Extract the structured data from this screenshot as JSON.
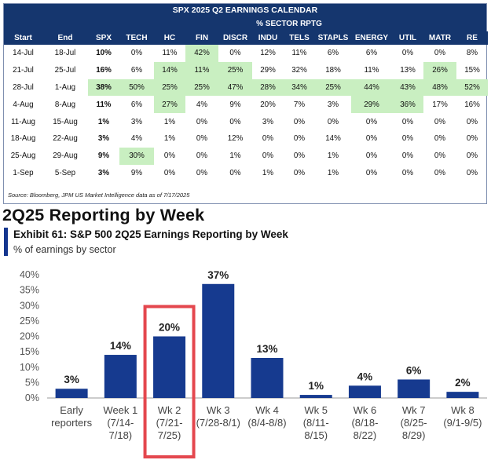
{
  "calendar": {
    "title": "SPX 2025 Q2 EARNINGS CALENDAR",
    "subtitle": "% SECTOR RPTG",
    "headers": [
      "Start",
      "End",
      "SPX",
      "TECH",
      "HC",
      "FIN",
      "DISCR",
      "INDU",
      "TELS",
      "STAPLS",
      "ENERGY",
      "UTIL",
      "MATR",
      "RE"
    ],
    "rows": [
      [
        "14-Jul",
        "18-Jul",
        "10%",
        "0%",
        "11%",
        "42%",
        "0%",
        "12%",
        "11%",
        "6%",
        "6%",
        "0%",
        "0%",
        "8%"
      ],
      [
        "21-Jul",
        "25-Jul",
        "16%",
        "6%",
        "14%",
        "11%",
        "25%",
        "29%",
        "32%",
        "18%",
        "11%",
        "13%",
        "26%",
        "15%"
      ],
      [
        "28-Jul",
        "1-Aug",
        "38%",
        "50%",
        "25%",
        "25%",
        "47%",
        "28%",
        "34%",
        "25%",
        "44%",
        "43%",
        "48%",
        "52%"
      ],
      [
        "4-Aug",
        "8-Aug",
        "11%",
        "6%",
        "27%",
        "4%",
        "9%",
        "20%",
        "7%",
        "3%",
        "29%",
        "36%",
        "17%",
        "16%"
      ],
      [
        "11-Aug",
        "15-Aug",
        "1%",
        "3%",
        "1%",
        "0%",
        "0%",
        "3%",
        "0%",
        "0%",
        "0%",
        "0%",
        "0%",
        "0%"
      ],
      [
        "18-Aug",
        "22-Aug",
        "3%",
        "4%",
        "1%",
        "0%",
        "12%",
        "0%",
        "0%",
        "14%",
        "0%",
        "0%",
        "0%",
        "0%"
      ],
      [
        "25-Aug",
        "29-Aug",
        "9%",
        "30%",
        "0%",
        "0%",
        "1%",
        "0%",
        "0%",
        "1%",
        "0%",
        "0%",
        "0%",
        "0%"
      ],
      [
        "1-Sep",
        "5-Sep",
        "3%",
        "9%",
        "0%",
        "0%",
        "0%",
        "1%",
        "0%",
        "1%",
        "0%",
        "0%",
        "0%",
        "0%"
      ]
    ],
    "highlighted": [
      [
        0,
        5
      ],
      [
        1,
        4
      ],
      [
        1,
        5
      ],
      [
        1,
        6
      ],
      [
        1,
        12
      ],
      [
        2,
        2
      ],
      [
        2,
        3
      ],
      [
        2,
        4
      ],
      [
        2,
        5
      ],
      [
        2,
        6
      ],
      [
        2,
        7
      ],
      [
        2,
        8
      ],
      [
        2,
        9
      ],
      [
        2,
        10
      ],
      [
        2,
        11
      ],
      [
        2,
        12
      ],
      [
        2,
        13
      ],
      [
        3,
        4
      ],
      [
        3,
        10
      ],
      [
        3,
        11
      ],
      [
        6,
        3
      ]
    ],
    "highlight_color": "#c9efc1",
    "header_color": "#15366e",
    "source": "Source: Bloomberg, JPM US Market Intelligence data as of 7/17/2025"
  },
  "section_title": "2Q25 Reporting by Week",
  "exhibit": {
    "title": "Exhibit 61: S&P 500 2Q25 Earnings Reporting by Week",
    "subtitle": "% of earnings by sector",
    "accent_color": "#15368f"
  },
  "chart_data": {
    "type": "bar",
    "categories": [
      [
        "Early",
        "reporters"
      ],
      [
        "Week 1",
        "(7/14-",
        "7/18)"
      ],
      [
        "Wk 2",
        "(7/21-",
        "7/25)"
      ],
      [
        "Wk 3",
        "(7/28-8/1)"
      ],
      [
        "Wk 4",
        "(8/4-8/8)"
      ],
      [
        "Wk 5",
        "(8/11-",
        "8/15)"
      ],
      [
        "Wk 6",
        "(8/18-",
        "8/22)"
      ],
      [
        "Wk 7",
        "(8/25-",
        "8/29)"
      ],
      [
        "Wk 8",
        "(9/1-9/5)"
      ]
    ],
    "values": [
      3,
      14,
      20,
      37,
      13,
      1,
      4,
      6,
      2
    ],
    "data_labels": [
      "3%",
      "14%",
      "20%",
      "37%",
      "13%",
      "1%",
      "4%",
      "6%",
      "2%"
    ],
    "yticks": [
      "0%",
      "5%",
      "10%",
      "15%",
      "20%",
      "25%",
      "30%",
      "35%",
      "40%"
    ],
    "ylim": [
      0,
      40
    ],
    "bar_color": "#163a8f",
    "highlight_index": 2,
    "highlight_color": "#e4474e",
    "grid": false
  }
}
